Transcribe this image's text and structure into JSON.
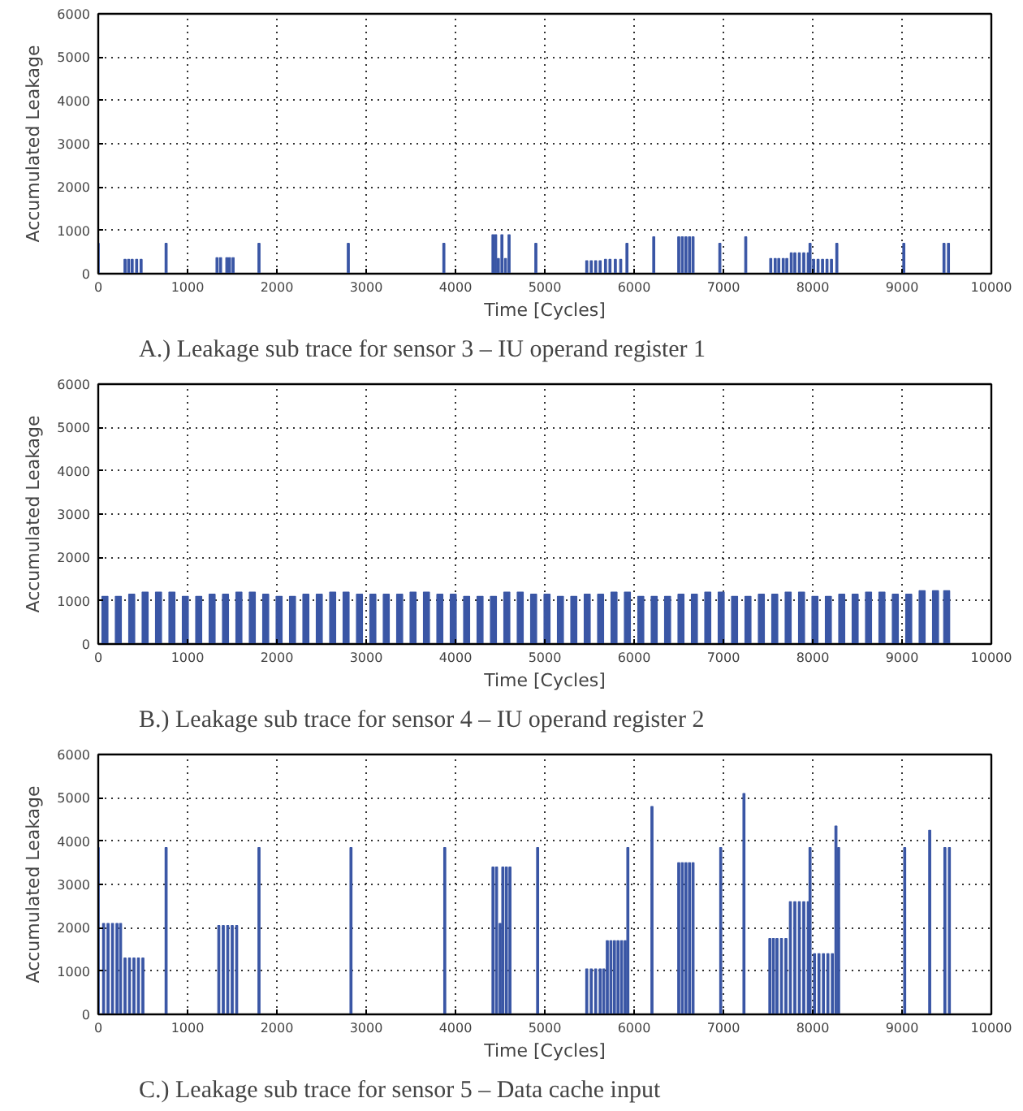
{
  "chart_data": [
    {
      "type": "bar",
      "title": "A.) Leakage sub trace for sensor 3 – IU operand register 1",
      "xlabel": "Time [Cycles]",
      "ylabel": "Accumulated Leakage",
      "x": [
        0,
        300,
        340,
        380,
        430,
        480,
        760,
        1330,
        1370,
        1440,
        1470,
        1510,
        1800,
        2800,
        3870,
        4420,
        4450,
        4480,
        4520,
        4560,
        4600,
        4900,
        5470,
        5520,
        5570,
        5620,
        5680,
        5730,
        5790,
        5850,
        5920,
        6220,
        6500,
        6540,
        6580,
        6620,
        6660,
        6960,
        7250,
        7530,
        7580,
        7620,
        7670,
        7710,
        7760,
        7800,
        7850,
        7900,
        7950,
        7970,
        8010,
        8060,
        8110,
        8160,
        8210,
        8270,
        9020,
        9470,
        9520
      ],
      "values": [
        700,
        330,
        330,
        330,
        330,
        330,
        700,
        370,
        370,
        370,
        370,
        370,
        700,
        700,
        700,
        900,
        900,
        350,
        900,
        350,
        900,
        700,
        300,
        300,
        300,
        300,
        330,
        330,
        330,
        330,
        700,
        850,
        850,
        850,
        850,
        850,
        850,
        700,
        850,
        350,
        350,
        350,
        350,
        350,
        480,
        480,
        480,
        480,
        480,
        700,
        330,
        330,
        330,
        330,
        330,
        700,
        700,
        700,
        700
      ],
      "color": "#3a56a5",
      "xlim": [
        0,
        10000
      ],
      "ylim": [
        0,
        6000
      ],
      "xticks": [
        0,
        1000,
        2000,
        3000,
        4000,
        5000,
        6000,
        7000,
        8000,
        9000,
        10000
      ],
      "yticks": [
        0,
        1000,
        2000,
        3000,
        4000,
        5000,
        6000
      ],
      "grid": true
    },
    {
      "type": "bar",
      "title": "B.)  Leakage sub trace for sensor 4 – IU operand register 2",
      "xlabel": "Time [Cycles]",
      "ylabel": "Accumulated Leakage",
      "x": [
        75,
        225,
        375,
        525,
        675,
        825,
        975,
        1125,
        1275,
        1425,
        1575,
        1725,
        1875,
        2025,
        2175,
        2325,
        2475,
        2625,
        2775,
        2925,
        3075,
        3225,
        3375,
        3525,
        3675,
        3825,
        3975,
        4125,
        4275,
        4425,
        4575,
        4725,
        4875,
        5025,
        5175,
        5325,
        5475,
        5625,
        5775,
        5925,
        6075,
        6225,
        6375,
        6525,
        6675,
        6825,
        6975,
        7125,
        7275,
        7425,
        7575,
        7725,
        7875,
        8025,
        8175,
        8325,
        8475,
        8625,
        8775,
        8925,
        9075,
        9225,
        9375,
        9500
      ],
      "values": [
        1100,
        1100,
        1150,
        1200,
        1200,
        1200,
        1100,
        1100,
        1150,
        1150,
        1200,
        1200,
        1150,
        1100,
        1100,
        1150,
        1150,
        1200,
        1200,
        1150,
        1150,
        1150,
        1150,
        1200,
        1200,
        1150,
        1150,
        1100,
        1100,
        1100,
        1200,
        1200,
        1150,
        1150,
        1100,
        1100,
        1150,
        1150,
        1200,
        1200,
        1100,
        1100,
        1100,
        1150,
        1150,
        1200,
        1200,
        1100,
        1100,
        1150,
        1150,
        1200,
        1200,
        1100,
        1100,
        1150,
        1150,
        1200,
        1200,
        1150,
        1150,
        1230,
        1230,
        1230
      ],
      "color": "#3a56a5",
      "xlim": [
        0,
        10000
      ],
      "ylim": [
        0,
        6000
      ],
      "xticks": [
        0,
        1000,
        2000,
        3000,
        4000,
        5000,
        6000,
        7000,
        8000,
        9000,
        10000
      ],
      "yticks": [
        0,
        1000,
        2000,
        3000,
        4000,
        5000,
        6000
      ],
      "grid": true
    },
    {
      "type": "bar",
      "title": "C.)  Leakage sub trace for sensor 5 – Data cache input",
      "xlabel": "Time [Cycles]",
      "ylabel": "Accumulated Leakage",
      "x": [
        0,
        60,
        110,
        160,
        210,
        250,
        300,
        350,
        400,
        450,
        500,
        760,
        1350,
        1400,
        1450,
        1500,
        1550,
        1800,
        2830,
        3880,
        4420,
        4460,
        4500,
        4530,
        4570,
        4610,
        4920,
        5470,
        5520,
        5570,
        5620,
        5660,
        5700,
        5740,
        5780,
        5820,
        5860,
        5900,
        5930,
        6200,
        6500,
        6540,
        6580,
        6620,
        6660,
        6970,
        7230,
        7520,
        7560,
        7600,
        7650,
        7700,
        7750,
        7800,
        7850,
        7900,
        7950,
        7970,
        8020,
        8070,
        8120,
        8170,
        8220,
        8260,
        8290,
        9030,
        9310,
        9480,
        9530
      ],
      "values": [
        3850,
        2100,
        2100,
        2100,
        2100,
        2100,
        1300,
        1300,
        1300,
        1300,
        1300,
        3850,
        2050,
        2050,
        2050,
        2050,
        2050,
        3850,
        3850,
        3850,
        3400,
        3400,
        2100,
        3400,
        3400,
        3400,
        3850,
        1050,
        1050,
        1050,
        1050,
        1050,
        1700,
        1700,
        1700,
        1700,
        1700,
        1700,
        3850,
        4800,
        3500,
        3500,
        3500,
        3500,
        3500,
        3850,
        5100,
        1750,
        1750,
        1750,
        1750,
        1750,
        2600,
        2600,
        2600,
        2600,
        2600,
        3850,
        1400,
        1400,
        1400,
        1400,
        1400,
        4350,
        3850,
        3850,
        4250,
        3850,
        3850
      ],
      "color": "#3a56a5",
      "xlim": [
        0,
        10000
      ],
      "ylim": [
        0,
        6000
      ],
      "xticks": [
        0,
        1000,
        2000,
        3000,
        4000,
        5000,
        6000,
        7000,
        8000,
        9000,
        10000
      ],
      "yticks": [
        0,
        1000,
        2000,
        3000,
        4000,
        5000,
        6000
      ],
      "grid": true
    }
  ]
}
